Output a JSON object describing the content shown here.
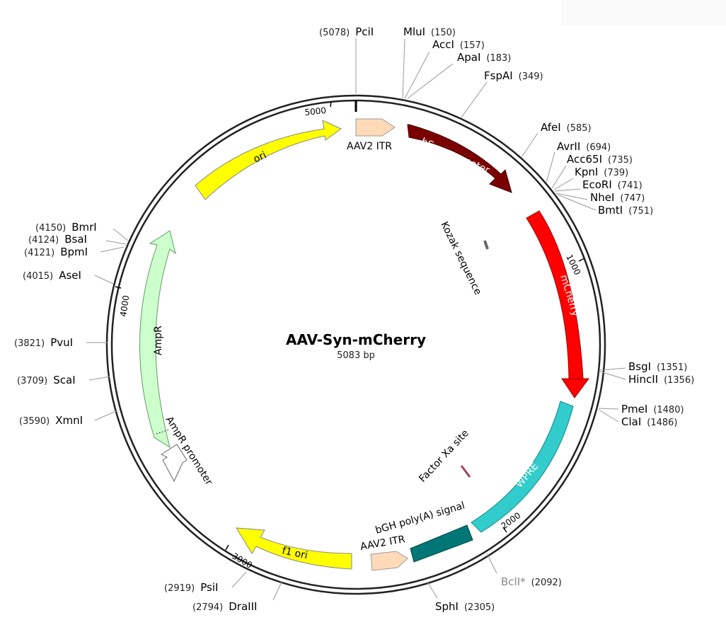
{
  "plasmid": {
    "name": "AAV-Syn-mCherry",
    "size_label": "5083 bp"
  },
  "ticks": [
    "1000",
    "2000",
    "3000",
    "4000",
    "5000"
  ],
  "features": {
    "aav2_itr_top": "AAV2 ITR",
    "hsyn_promoter": "hSyn promoter",
    "kozak": "Kozak sequence",
    "mcherry": "mCherry",
    "factor_xa": "Factor Xa site",
    "wpre": "WPRE",
    "bgh_polya": "bGH poly(A) signal",
    "aav2_itr_bottom": "AAV2 ITR",
    "f1_ori": "f1 ori",
    "ampr_promoter": "AmpR promoter",
    "ampr": "AmpR",
    "ori": "ori"
  },
  "sites": {
    "pcii": {
      "name": "PciI",
      "pos": "(5078)"
    },
    "mlui": {
      "name": "MluI",
      "pos": "(150)"
    },
    "acci": {
      "name": "AccI",
      "pos": "(157)"
    },
    "apai": {
      "name": "ApaI",
      "pos": "(183)"
    },
    "fspai": {
      "name": "FspAI",
      "pos": "(349)"
    },
    "afei": {
      "name": "AfeI",
      "pos": "(585)"
    },
    "avrii": {
      "name": "AvrII",
      "pos": "(694)"
    },
    "acc65i": {
      "name": "Acc65I",
      "pos": "(735)"
    },
    "kpni": {
      "name": "KpnI",
      "pos": "(739)"
    },
    "ecori": {
      "name": "EcoRI",
      "pos": "(741)"
    },
    "nhei": {
      "name": "NheI",
      "pos": "(747)"
    },
    "bmti": {
      "name": "BmtI",
      "pos": "(751)"
    },
    "bsgi": {
      "name": "BsgI",
      "pos": "(1351)"
    },
    "hincii": {
      "name": "HincII",
      "pos": "(1356)"
    },
    "pmei": {
      "name": "PmeI",
      "pos": "(1480)"
    },
    "clai": {
      "name": "ClaI",
      "pos": "(1486)"
    },
    "bcli": {
      "name": "BclI*",
      "pos": "(2092)"
    },
    "sphi": {
      "name": "SphI",
      "pos": "(2305)"
    },
    "draiii": {
      "name": "DraIII",
      "pos": "(2794)"
    },
    "psii": {
      "name": "PsiI",
      "pos": "(2919)"
    },
    "xmni": {
      "name": "XmnI",
      "pos": "(3590)"
    },
    "scai": {
      "name": "ScaI",
      "pos": "(3709)"
    },
    "pvui": {
      "name": "PvuI",
      "pos": "(3821)"
    },
    "asei": {
      "name": "AseI",
      "pos": "(4015)"
    },
    "bpmi": {
      "name": "BpmI",
      "pos": "(4121)"
    },
    "bsai": {
      "name": "BsaI",
      "pos": "(4124)"
    },
    "bmri": {
      "name": "BmrI",
      "pos": "(4150)"
    }
  },
  "colors": {
    "hsyn_promoter": "#7a0000",
    "mcherry": "#ff0000",
    "wpre": "#33cccc",
    "bgh_polya": "#007777",
    "aav2_itr": "#ffdab9",
    "f1_ori": "#ffff00",
    "ori": "#ffff00",
    "ampr": "#ccffcc",
    "ampr_promoter": "#ffffff",
    "bcli_label": "#888888"
  }
}
